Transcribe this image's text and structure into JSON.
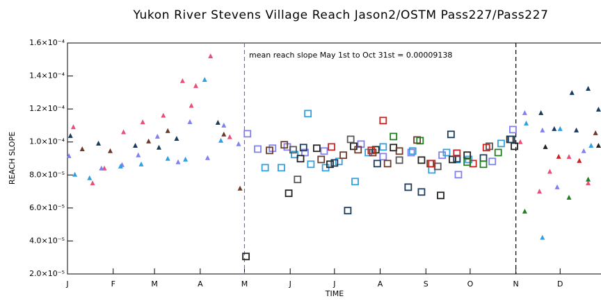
{
  "chart_data": {
    "type": "scatter",
    "title": "Yukon River Stevens Village Reach Jason2/OSTM Pass227/Pass227",
    "xlabel": "TIME",
    "ylabel": "REACH SLOPE",
    "annotation": "mean reach slope May 1st to Oct 31st = 0.00009138",
    "xlim": [
      0,
      365
    ],
    "ylim": [
      2e-05,
      0.00016
    ],
    "xticks": [
      {
        "value": 0,
        "label": "J"
      },
      {
        "value": 31,
        "label": "F"
      },
      {
        "value": 59,
        "label": "M"
      },
      {
        "value": 90,
        "label": "A"
      },
      {
        "value": 120,
        "label": "M"
      },
      {
        "value": 151,
        "label": "J"
      },
      {
        "value": 181,
        "label": "J"
      },
      {
        "value": 212,
        "label": "A"
      },
      {
        "value": 243,
        "label": "S"
      },
      {
        "value": 273,
        "label": "O"
      },
      {
        "value": 304,
        "label": "N"
      },
      {
        "value": 334,
        "label": "D"
      }
    ],
    "yticks": [
      {
        "value": 2e-05,
        "label": "2.0×10⁻⁵"
      },
      {
        "value": 4e-05,
        "label": "4.0×10⁻⁵"
      },
      {
        "value": 6e-05,
        "label": "6.0×10⁻⁵"
      },
      {
        "value": 8e-05,
        "label": "8.0×10⁻⁵"
      },
      {
        "value": 0.0001,
        "label": "1.0×10⁻⁴"
      },
      {
        "value": 0.00012,
        "label": "1.2×10⁻⁴"
      },
      {
        "value": 0.00014,
        "label": "1.4×10⁻⁴"
      },
      {
        "value": 0.00016,
        "label": "1.6×10⁻⁴"
      }
    ],
    "vlines": [
      {
        "x": 120,
        "color": "#6a6ad0"
      },
      {
        "x": 304,
        "color": "#000000"
      }
    ],
    "series": [
      {
        "marker": "triangle",
        "color": "#e8507a",
        "x": [
          4,
          17,
          25,
          38,
          51,
          65,
          78,
          84,
          97,
          87,
          110,
          307,
          320,
          327,
          340,
          353
        ],
        "values": [
          0.000109,
          7.5e-05,
          8.4e-05,
          0.000106,
          0.000112,
          0.000116,
          0.000137,
          0.000122,
          0.000152,
          0.000134,
          0.000103,
          0.0001,
          7e-05,
          8.2e-05,
          9.1e-05,
          7.5e-05
        ]
      },
      {
        "marker": "triangle",
        "color": "#8080f0",
        "x": [
          1,
          23,
          37,
          48,
          61,
          75,
          83,
          95,
          106,
          116,
          310,
          322,
          332,
          350
        ],
        "values": [
          9.15e-05,
          8.4e-05,
          8.61e-05,
          9.2e-05,
          0.0001033,
          8.78e-05,
          0.0001121,
          9.03e-05,
          0.00011,
          9.87e-05,
          0.0001176,
          0.0001071,
          7.26e-05,
          9.45e-05
        ]
      },
      {
        "marker": "triangle",
        "color": "#1a3c5a",
        "x": [
          2,
          21,
          46,
          62,
          74,
          102,
          321,
          330,
          342,
          353,
          360,
          345
        ],
        "values": [
          0.0001037,
          9.91e-05,
          9.78e-05,
          9.66e-05,
          0.000102,
          0.0001117,
          0.0001176,
          0.0001079,
          0.0001298,
          0.0001323,
          0.0001197,
          0.0001071
        ]
      },
      {
        "marker": "triangle",
        "color": "#30a0e0",
        "x": [
          5,
          15,
          36,
          50,
          68,
          80,
          93,
          104,
          334,
          322,
          311,
          355
        ],
        "values": [
          8.02e-05,
          7.81e-05,
          8.52e-05,
          8.65e-05,
          8.99e-05,
          8.94e-05,
          0.0001377,
          0.0001008,
          0.0001079,
          4.2e-05,
          0.0001113,
          9.78e-05
        ]
      },
      {
        "marker": "triangle",
        "color": "#6a3a2a",
        "x": [
          10,
          29,
          55,
          68,
          117,
          106,
          358
        ],
        "values": [
          9.57e-05,
          9.45e-05,
          0.0001004,
          0.0001067,
          7.18e-05,
          0.0001046,
          0.0001054
        ]
      },
      {
        "marker": "triangle",
        "color": "#208020",
        "x": [
          310,
          340,
          353
        ],
        "values": [
          5.79e-05,
          6.63e-05,
          7.73e-05
        ]
      },
      {
        "marker": "triangle",
        "color": "#d02020",
        "x": [
          347,
          333
        ],
        "values": [
          8.86e-05,
          9.11e-05
        ]
      },
      {
        "marker": "triangle",
        "color": "#222222",
        "x": [
          324,
          360
        ],
        "values": [
          9.7e-05,
          9.78e-05
        ]
      },
      {
        "marker": "square",
        "color": "#8080f0",
        "x": [
          129,
          139,
          149,
          161,
          174,
          199,
          214,
          233,
          254,
          265,
          288,
          302,
          122
        ],
        "values": [
          9.57e-05,
          9.62e-05,
          9.7e-05,
          9.36e-05,
          9.45e-05,
          9.87e-05,
          9.11e-05,
          9.36e-05,
          9.2e-05,
          8.02e-05,
          8.82e-05,
          0.0001075,
          0.000105
        ]
      },
      {
        "marker": "square",
        "color": "#30a0e0",
        "x": [
          134,
          145,
          154,
          165,
          175,
          184,
          195,
          204,
          214,
          234,
          247,
          257,
          264,
          272,
          294,
          163
        ],
        "values": [
          8.44e-05,
          8.44e-05,
          9.24e-05,
          8.65e-05,
          8.44e-05,
          8.82e-05,
          7.6e-05,
          9.36e-05,
          9.7e-05,
          9.45e-05,
          8.31e-05,
          9.36e-05,
          8.94e-05,
          8.94e-05,
          9.91e-05,
          0.0001172
        ]
      },
      {
        "marker": "square",
        "color": "#222222",
        "x": [
          121,
          150,
          158,
          169,
          178,
          194,
          209,
          221,
          240,
          253,
          261,
          271,
          300,
          303
        ],
        "values": [
          3.06e-05,
          6.89e-05,
          8.99e-05,
          9.62e-05,
          8.65e-05,
          9.74e-05,
          9.53e-05,
          9.66e-05,
          8.9e-05,
          6.76e-05,
          8.94e-05,
          9.2e-05,
          0.0001016,
          9.74e-05
        ]
      },
      {
        "marker": "square",
        "color": "#1a3c5a",
        "x": [
          160,
          181,
          190,
          210,
          231,
          240,
          260,
          264,
          282,
          301
        ],
        "values": [
          9.66e-05,
          8.73e-05,
          5.84e-05,
          8.69e-05,
          7.26e-05,
          6.97e-05,
          0.0001046,
          8.99e-05,
          9.03e-05,
          0.0001016
        ]
      },
      {
        "marker": "square",
        "color": "#6a3a2a",
        "x": [
          137,
          147,
          172,
          187,
          197,
          207,
          217,
          225,
          237,
          246
        ],
        "values": [
          9.49e-05,
          9.83e-05,
          8.94e-05,
          9.2e-05,
          9.53e-05,
          9.36e-05,
          8.69e-05,
          9.45e-05,
          0.0001012,
          8.69e-05
        ]
      },
      {
        "marker": "square",
        "color": "#555555",
        "x": [
          156,
          153,
          192,
          225,
          251,
          286
        ],
        "values": [
          7.73e-05,
          9.53e-05,
          0.0001016,
          8.9e-05,
          8.52e-05,
          9.74e-05
        ]
      },
      {
        "marker": "square",
        "color": "#d02020",
        "x": [
          179,
          214,
          247,
          264,
          275,
          284,
          206
        ],
        "values": [
          9.7e-05,
          0.000113,
          8.69e-05,
          9.32e-05,
          8.69e-05,
          9.66e-05,
          9.49e-05
        ]
      },
      {
        "marker": "square",
        "color": "#208020",
        "x": [
          221,
          239,
          271,
          282,
          292
        ],
        "values": [
          0.0001033,
          0.0001008,
          8.78e-05,
          8.65e-05,
          9.36e-05
        ]
      }
    ]
  }
}
